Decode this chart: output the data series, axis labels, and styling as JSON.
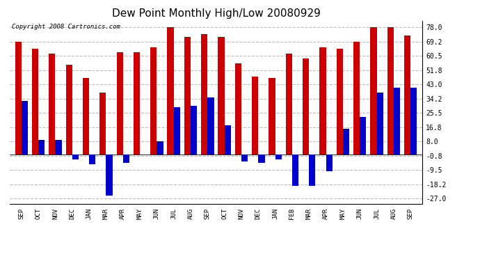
{
  "title": "Dew Point Monthly High/Low 20080929",
  "copyright": "Copyright 2008 Cartronics.com",
  "categories": [
    "SEP",
    "OCT",
    "NOV",
    "DEC",
    "JAN",
    "MAR",
    "APR",
    "MAY",
    "JUN",
    "JUL",
    "AUG",
    "SEP",
    "OCT",
    "NOV",
    "DEC",
    "JAN",
    "FEB",
    "MAR",
    "APR",
    "MAY",
    "JUN",
    "JUL",
    "AUG",
    "SEP"
  ],
  "highs": [
    69,
    65,
    62,
    55,
    47,
    38,
    63,
    63,
    66,
    78,
    72,
    74,
    72,
    56,
    48,
    47,
    62,
    59,
    66,
    65,
    69,
    78,
    78,
    73
  ],
  "lows": [
    33,
    9,
    9,
    -3,
    -6,
    -25,
    -5,
    0,
    8,
    29,
    30,
    35,
    18,
    -4,
    -5,
    -3,
    -19,
    -19,
    -10,
    16,
    23,
    38,
    41,
    41
  ],
  "bar_color_high": "#cc0000",
  "bar_color_low": "#0000cc",
  "ytick_values": [
    -27.0,
    -18.2,
    -9.5,
    -0.8,
    8.0,
    16.8,
    25.5,
    34.2,
    43.0,
    51.8,
    60.5,
    69.2,
    78.0
  ],
  "ytick_labels": [
    "-27.0",
    "-18.2",
    "-9.5",
    "-0.8",
    "8.0",
    "16.8",
    "25.5",
    "34.2",
    "43.0",
    "51.8",
    "60.5",
    "69.2",
    "78.0"
  ],
  "ylim_min": -30,
  "ylim_max": 82,
  "background_color": "#ffffff",
  "grid_color": "#bbbbbb",
  "title_fontsize": 11,
  "copyright_fontsize": 6.5,
  "bar_width": 0.38,
  "figwidth": 6.9,
  "figheight": 3.75,
  "dpi": 100
}
